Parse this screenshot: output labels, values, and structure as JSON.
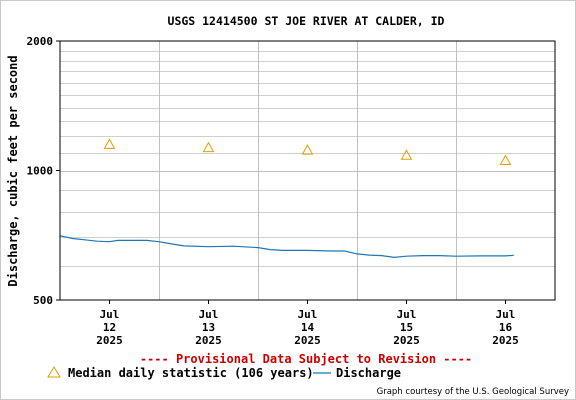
{
  "colors": {
    "median_marker": "#e0a000",
    "discharge_line": "#1f77b4",
    "provisional_text": "#cc0000",
    "grid_major": "#c0c0c0",
    "grid_minor": "#d0d0d0",
    "axis": "#000000"
  },
  "chart_data": {
    "type": "line",
    "title": "USGS 12414500 ST JOE RIVER AT CALDER, ID",
    "ylabel": "Discharge, cubic feet per second",
    "xlabel": "",
    "y_scale": "log",
    "ylim": [
      500,
      2000
    ],
    "y_ticks": [
      {
        "value": 500,
        "label": "500"
      },
      {
        "value": 1000,
        "label": "1000"
      },
      {
        "value": 2000,
        "label": "2000"
      }
    ],
    "xlim": [
      "2025-07-12 00:00",
      "2025-07-17 00:00"
    ],
    "x_ticks": [
      {
        "date": "2025-07-12 12:00",
        "month": "Jul",
        "day": "12",
        "year": "2025"
      },
      {
        "date": "2025-07-13 12:00",
        "month": "Jul",
        "day": "13",
        "year": "2025"
      },
      {
        "date": "2025-07-14 12:00",
        "month": "Jul",
        "day": "14",
        "year": "2025"
      },
      {
        "date": "2025-07-15 12:00",
        "month": "Jul",
        "day": "15",
        "year": "2025"
      },
      {
        "date": "2025-07-16 12:00",
        "month": "Jul",
        "day": "16",
        "year": "2025"
      }
    ],
    "x_gridlines": [
      "2025-07-13 00:00",
      "2025-07-14 00:00",
      "2025-07-15 00:00",
      "2025-07-16 00:00"
    ],
    "grid": true,
    "series": [
      {
        "name": "Median daily statistic (106 years)",
        "kind": "marker",
        "marker": "triangle",
        "points": [
          {
            "x": "2025-07-12 12:00",
            "y": 1150
          },
          {
            "x": "2025-07-13 12:00",
            "y": 1130
          },
          {
            "x": "2025-07-14 12:00",
            "y": 1115
          },
          {
            "x": "2025-07-15 12:00",
            "y": 1085
          },
          {
            "x": "2025-07-16 12:00",
            "y": 1055
          }
        ]
      },
      {
        "name": "Discharge",
        "kind": "line",
        "points": [
          {
            "x": "2025-07-12 00:00",
            "y": 705
          },
          {
            "x": "2025-07-12 03:00",
            "y": 695
          },
          {
            "x": "2025-07-12 06:00",
            "y": 690
          },
          {
            "x": "2025-07-12 09:00",
            "y": 685
          },
          {
            "x": "2025-07-12 12:00",
            "y": 683
          },
          {
            "x": "2025-07-12 14:00",
            "y": 688
          },
          {
            "x": "2025-07-12 18:00",
            "y": 688
          },
          {
            "x": "2025-07-12 21:00",
            "y": 688
          },
          {
            "x": "2025-07-13 00:00",
            "y": 683
          },
          {
            "x": "2025-07-13 03:00",
            "y": 675
          },
          {
            "x": "2025-07-13 06:00",
            "y": 668
          },
          {
            "x": "2025-07-13 12:00",
            "y": 665
          },
          {
            "x": "2025-07-13 18:00",
            "y": 667
          },
          {
            "x": "2025-07-14 00:00",
            "y": 662
          },
          {
            "x": "2025-07-14 03:00",
            "y": 655
          },
          {
            "x": "2025-07-14 06:00",
            "y": 652
          },
          {
            "x": "2025-07-14 12:00",
            "y": 652
          },
          {
            "x": "2025-07-14 18:00",
            "y": 650
          },
          {
            "x": "2025-07-14 21:00",
            "y": 650
          },
          {
            "x": "2025-07-15 00:00",
            "y": 640
          },
          {
            "x": "2025-07-15 03:00",
            "y": 636
          },
          {
            "x": "2025-07-15 06:00",
            "y": 634
          },
          {
            "x": "2025-07-15 09:00",
            "y": 628
          },
          {
            "x": "2025-07-15 12:00",
            "y": 632
          },
          {
            "x": "2025-07-15 16:00",
            "y": 634
          },
          {
            "x": "2025-07-15 20:00",
            "y": 634
          },
          {
            "x": "2025-07-16 00:00",
            "y": 632
          },
          {
            "x": "2025-07-16 06:00",
            "y": 633
          },
          {
            "x": "2025-07-16 12:00",
            "y": 633
          },
          {
            "x": "2025-07-16 14:00",
            "y": 635
          }
        ]
      }
    ]
  },
  "provisional_text": "---- Provisional Data Subject to Revision ----",
  "legend": {
    "median_label": "Median daily statistic (106 years)",
    "discharge_label": "Discharge"
  },
  "credit": "Graph courtesy of the U.S. Geological Survey"
}
